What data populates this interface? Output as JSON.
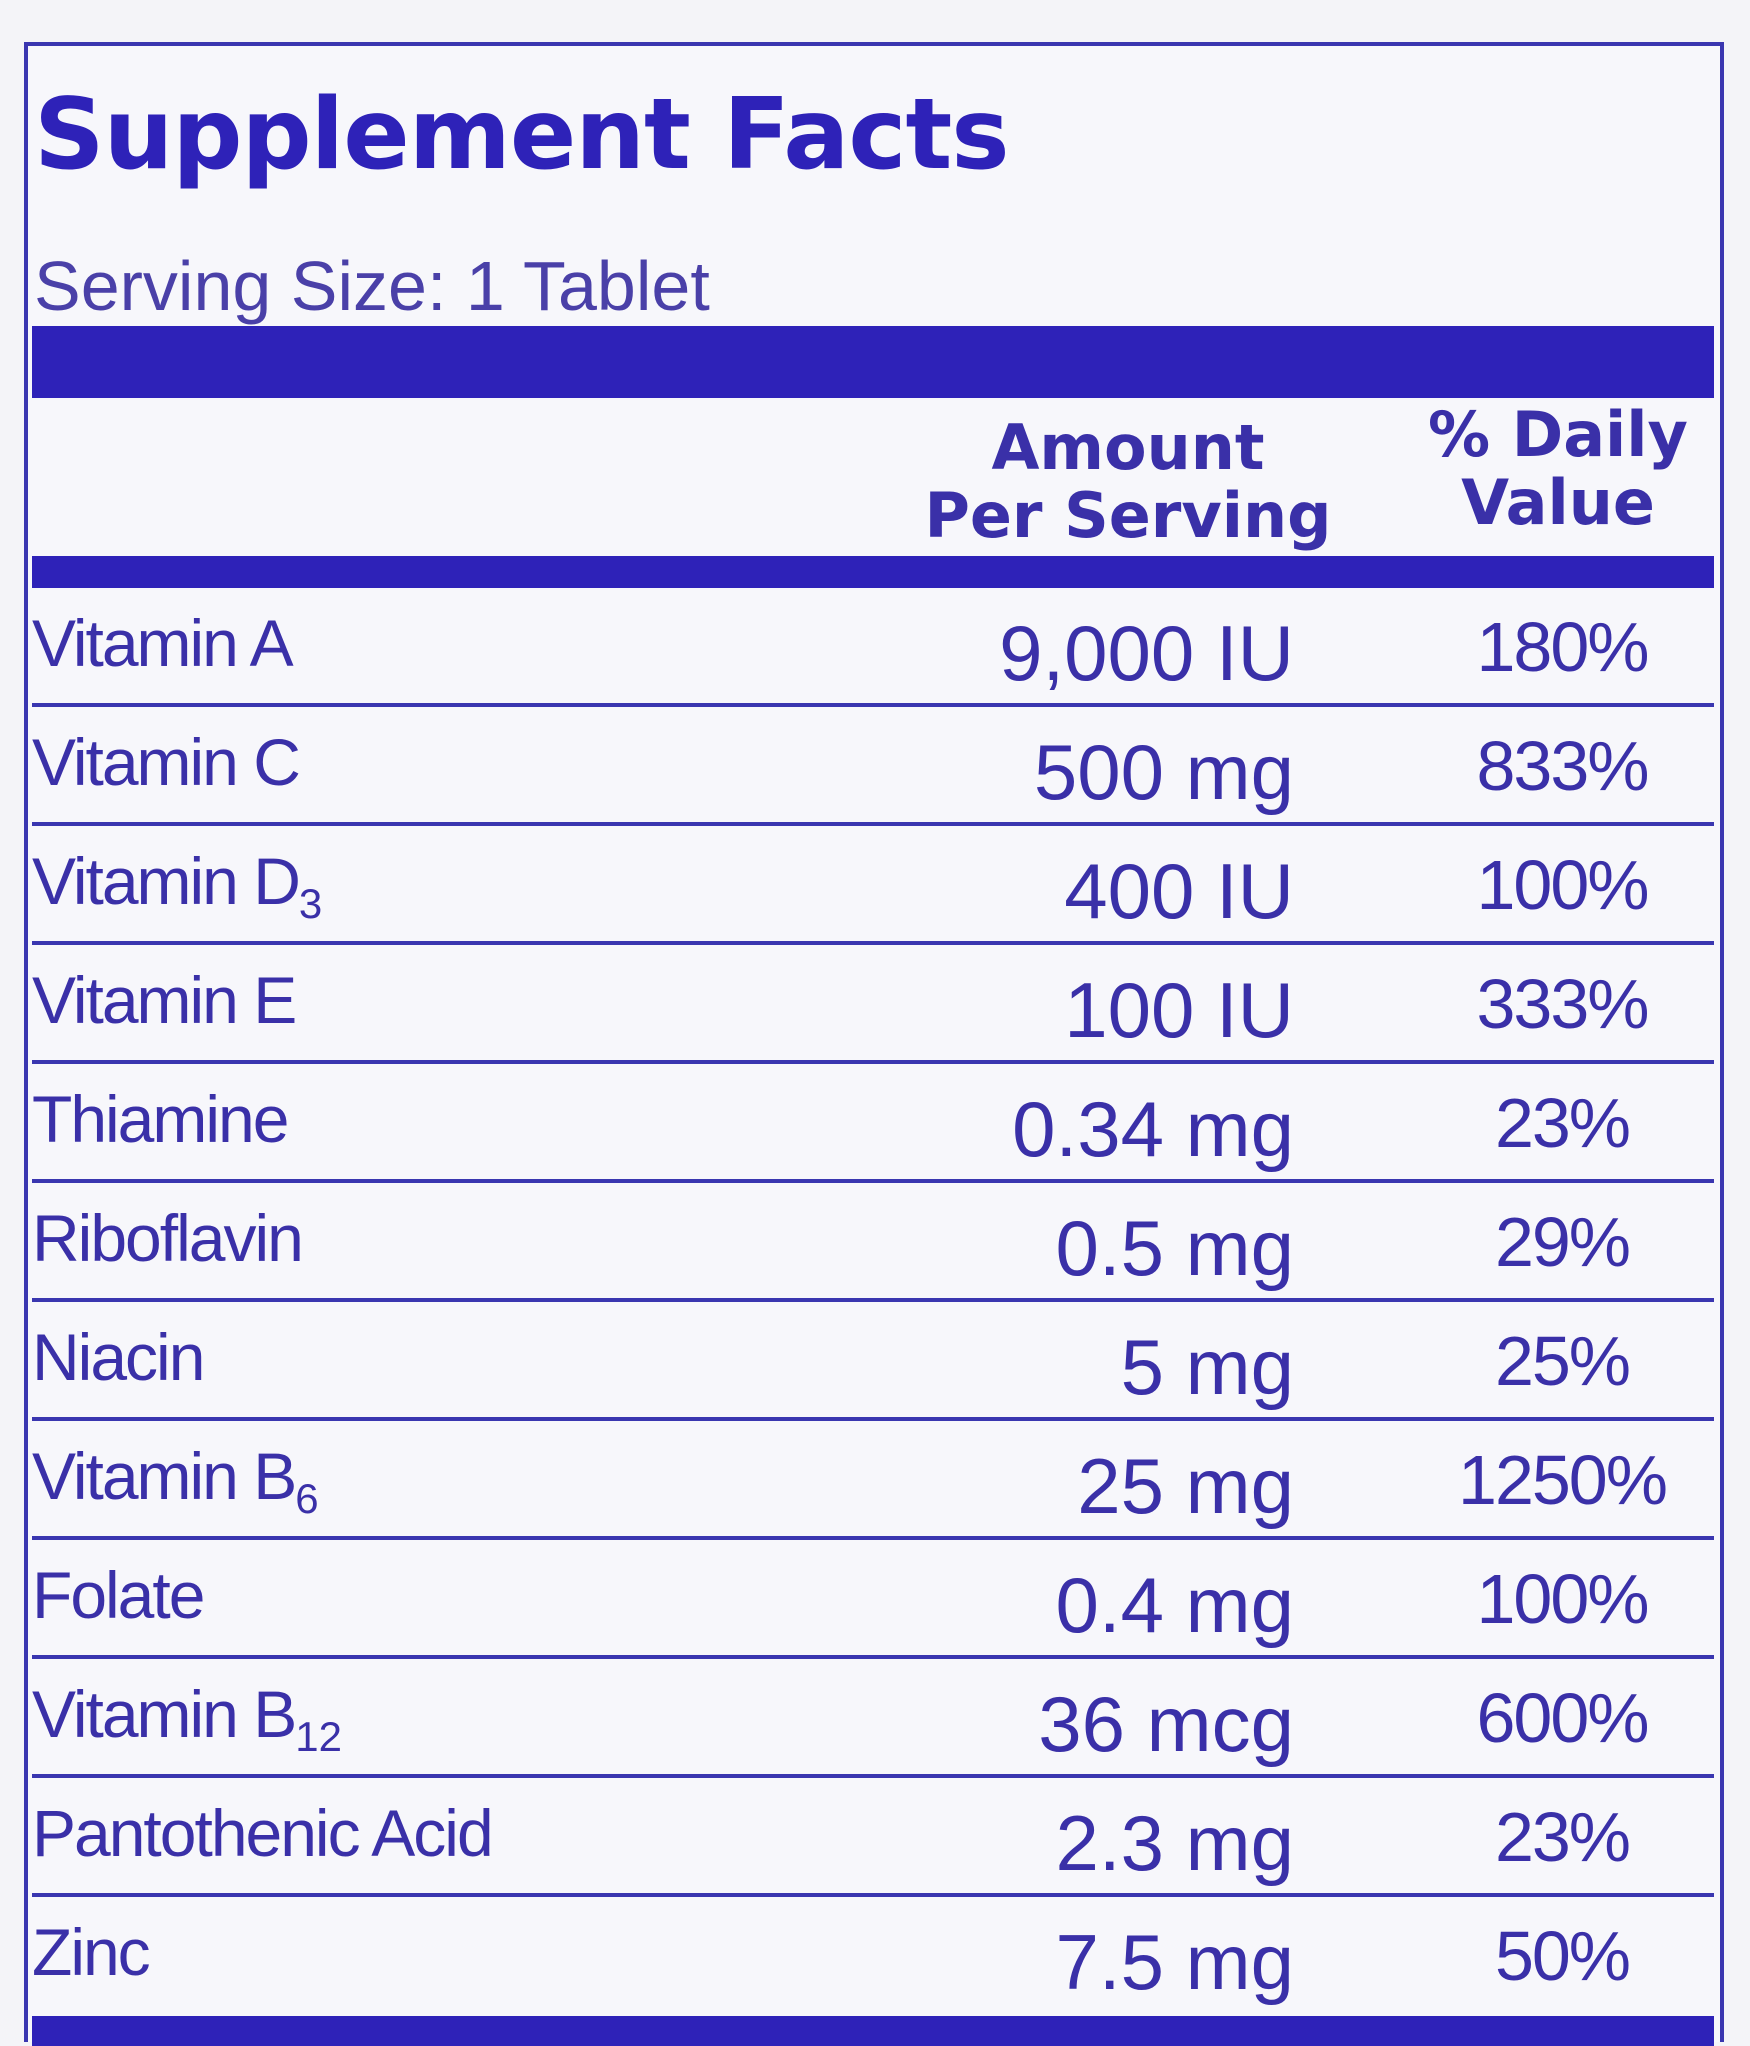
{
  "panel": {
    "title": "Supplement Facts",
    "serving_size": "Serving Size: 1 Tablet",
    "header": {
      "amount_line1": "Amount",
      "amount_line2": "Per  Serving",
      "dv_line1": "% Daily",
      "dv_line2": "Value"
    },
    "accent_color": "#2e22b8",
    "rows": [
      {
        "name": "Vitamin A",
        "sub": "",
        "amount": "9,000 IU",
        "dv": "180%"
      },
      {
        "name": "Vitamin C",
        "sub": "",
        "amount": "500 mg",
        "dv": "833%"
      },
      {
        "name": "Vitamin D",
        "sub": "3",
        "amount": "400 IU",
        "dv": "100%"
      },
      {
        "name": "Vitamin E",
        "sub": "",
        "amount": "100 IU",
        "dv": "333%"
      },
      {
        "name": "Thiamine",
        "sub": "",
        "amount": "0.34 mg",
        "dv": "23%"
      },
      {
        "name": "Riboflavin",
        "sub": "",
        "amount": "0.5 mg",
        "dv": "29%"
      },
      {
        "name": "Niacin",
        "sub": "",
        "amount": "5 mg",
        "dv": "25%"
      },
      {
        "name": "Vitamin B",
        "sub": "6",
        "amount": "25 mg",
        "dv": "1250%"
      },
      {
        "name": "Folate",
        "sub": "",
        "amount": "0.4 mg",
        "dv": "100%"
      },
      {
        "name": "Vitamin B",
        "sub": "12",
        "amount": "36 mcg",
        "dv": "600%"
      },
      {
        "name": "Pantothenic Acid",
        "sub": "",
        "amount": "2.3 mg",
        "dv": "23%"
      },
      {
        "name": "Zinc",
        "sub": "",
        "amount": "7.5 mg",
        "dv": "50%"
      }
    ]
  }
}
